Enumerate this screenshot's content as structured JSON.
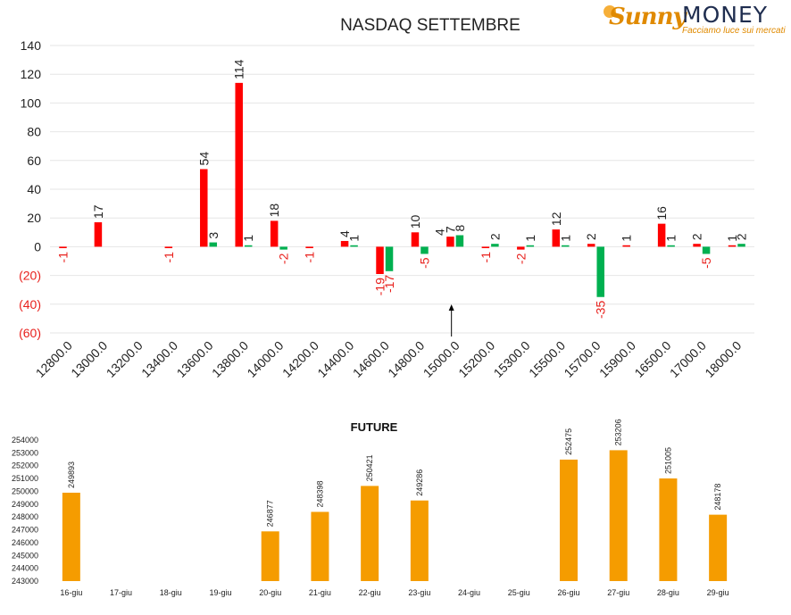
{
  "logo": {
    "brand_a": "Sunny",
    "brand_b": "MONEY",
    "tagline": "Facciamo luce sui mercati"
  },
  "colors": {
    "positive": "#ff0000",
    "negative": "#00b050",
    "future": "#f59c00",
    "neg_label": "#e8201c"
  },
  "chart_data": [
    {
      "type": "bar",
      "title": "NASDAQ SETTEMBRE",
      "ylim": [
        -60,
        140
      ],
      "yticks": [
        140,
        120,
        100,
        80,
        60,
        40,
        20,
        0,
        -20,
        -40,
        -60
      ],
      "ytick_labels": [
        "140",
        "120",
        "100",
        "80",
        "60",
        "40",
        "20",
        "0",
        "(20)",
        "(40)",
        "(60)"
      ],
      "categories": [
        "12800.0",
        "13000.0",
        "13200.0",
        "13400.0",
        "13600.0",
        "13800.0",
        "14000.0",
        "14200.0",
        "14400.0",
        "14600.0",
        "14800.0",
        "15000.0",
        "15200.0",
        "15300.0",
        "15500.0",
        "15700.0",
        "15900.0",
        "16500.0",
        "17000.0",
        "18000.0"
      ],
      "series": [
        {
          "values": [
            -1,
            17,
            null,
            -1,
            54,
            114,
            18,
            -1,
            4,
            -19,
            10,
            7,
            -1,
            -2,
            12,
            2,
            1,
            16,
            2,
            1
          ]
        },
        {
          "values": [
            null,
            null,
            null,
            null,
            3,
            1,
            -2,
            null,
            1,
            -17,
            -5,
            8,
            2,
            1,
            1,
            -35,
            null,
            1,
            -5,
            2
          ]
        }
      ],
      "annotations": [
        {
          "text": "4",
          "category": "15000.0",
          "near_value": 4
        },
        {
          "type": "arrow",
          "category": "15000.0",
          "direction": "up"
        }
      ]
    },
    {
      "type": "bar",
      "title": "FUTURE",
      "ylim": [
        243000,
        254000
      ],
      "yticks": [
        254000,
        253000,
        252000,
        251000,
        250000,
        249000,
        248000,
        247000,
        246000,
        245000,
        244000,
        243000
      ],
      "categories": [
        "16-giu",
        "17-giu",
        "18-giu",
        "19-giu",
        "20-giu",
        "21-giu",
        "22-giu",
        "23-giu",
        "24-giu",
        "25-giu",
        "26-giu",
        "27-giu",
        "28-giu",
        "29-giu"
      ],
      "values": [
        249893,
        null,
        null,
        null,
        246877,
        248398,
        250421,
        249286,
        null,
        null,
        252475,
        253206,
        251005,
        248178
      ]
    }
  ]
}
